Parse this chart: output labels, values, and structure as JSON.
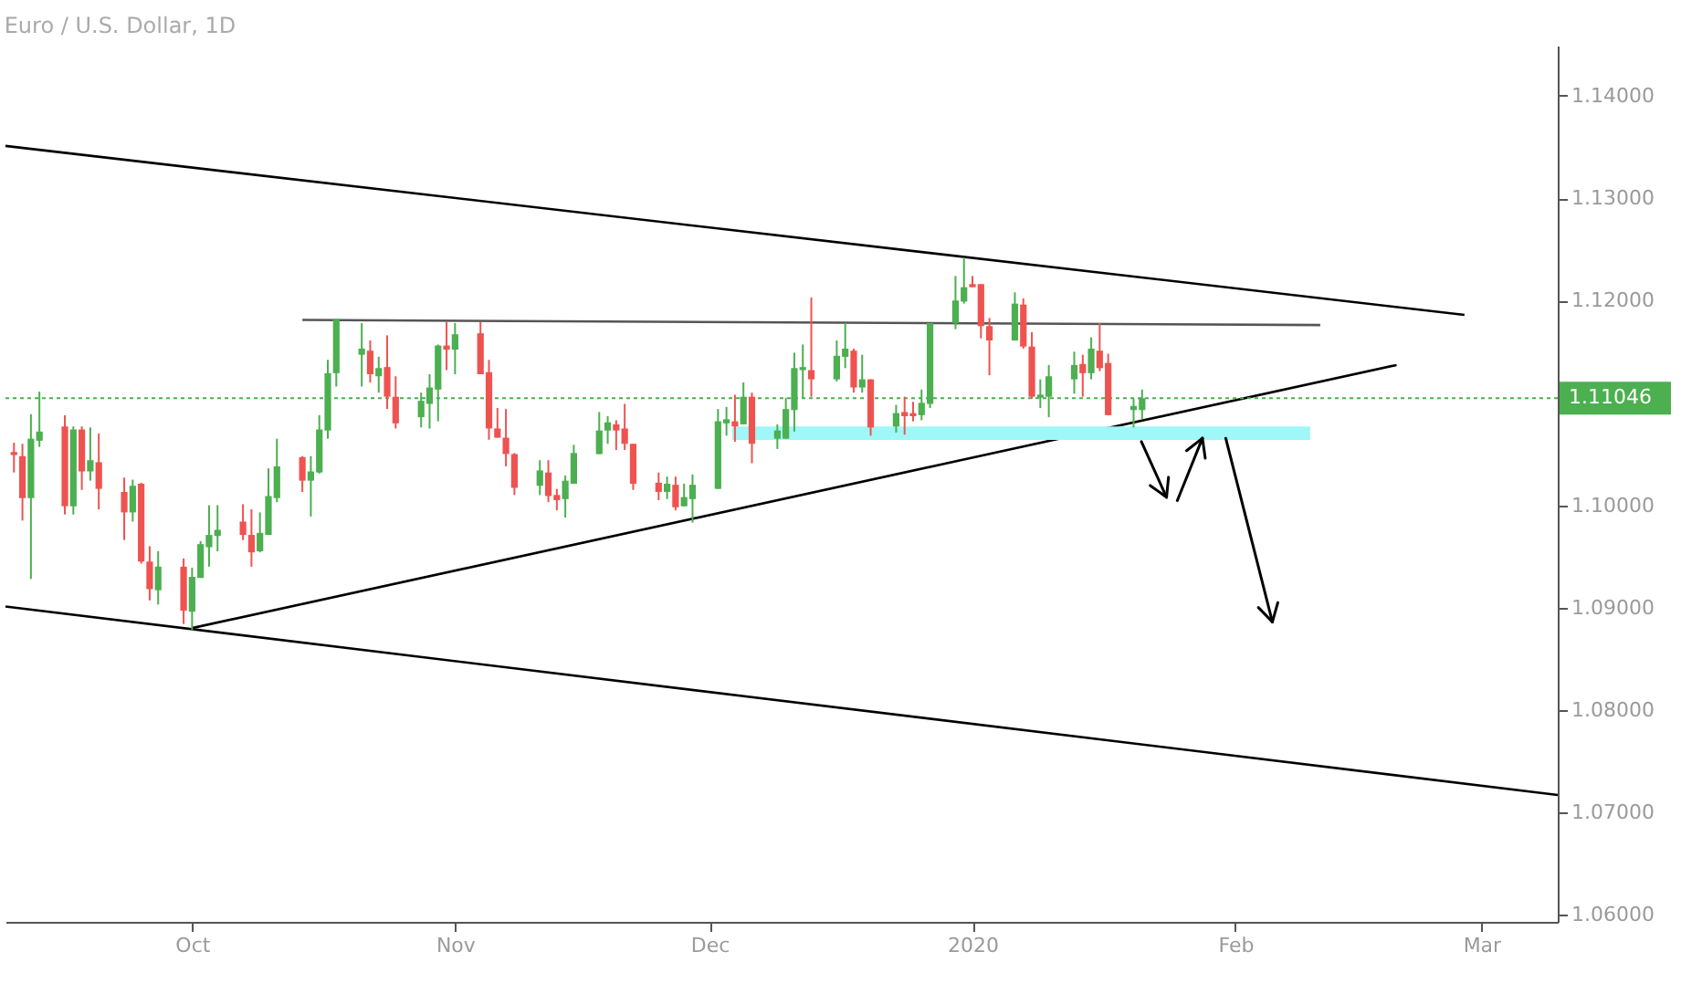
{
  "chart_data": {
    "type": "candlestick",
    "title": "Euro / U.S. Dollar, 1D",
    "x": [
      "2019-09-10",
      "2019-09-11",
      "2019-09-12",
      "2019-09-13",
      "2019-09-16",
      "2019-09-17",
      "2019-09-18",
      "2019-09-19",
      "2019-09-20",
      "2019-09-23",
      "2019-09-24",
      "2019-09-25",
      "2019-09-26",
      "2019-09-27",
      "2019-09-30",
      "2019-10-01",
      "2019-10-02",
      "2019-10-03",
      "2019-10-04",
      "2019-10-07",
      "2019-10-08",
      "2019-10-09",
      "2019-10-10",
      "2019-10-11",
      "2019-10-14",
      "2019-10-15",
      "2019-10-16",
      "2019-10-17",
      "2019-10-18",
      "2019-10-21",
      "2019-10-22",
      "2019-10-23",
      "2019-10-24",
      "2019-10-25",
      "2019-10-28",
      "2019-10-29",
      "2019-10-30",
      "2019-10-31",
      "2019-11-01",
      "2019-11-04",
      "2019-11-05",
      "2019-11-06",
      "2019-11-07",
      "2019-11-08",
      "2019-11-11",
      "2019-11-12",
      "2019-11-13",
      "2019-11-14",
      "2019-11-15",
      "2019-11-18",
      "2019-11-19",
      "2019-11-20",
      "2019-11-21",
      "2019-11-22",
      "2019-11-25",
      "2019-11-26",
      "2019-11-27",
      "2019-11-28",
      "2019-11-29",
      "2019-12-02",
      "2019-12-03",
      "2019-12-04",
      "2019-12-05",
      "2019-12-06",
      "2019-12-09",
      "2019-12-10",
      "2019-12-11",
      "2019-12-12",
      "2019-12-13",
      "2019-12-16",
      "2019-12-17",
      "2019-12-18",
      "2019-12-19",
      "2019-12-20",
      "2019-12-23",
      "2019-12-24",
      "2019-12-25",
      "2019-12-26",
      "2019-12-27",
      "2019-12-30",
      "2019-12-31",
      "2020-01-01",
      "2020-01-02",
      "2020-01-03",
      "2020-01-06",
      "2020-01-07",
      "2020-01-08",
      "2020-01-09",
      "2020-01-10",
      "2020-01-13",
      "2020-01-14",
      "2020-01-15",
      "2020-01-16",
      "2020-01-17",
      "2020-01-20",
      "2020-01-21"
    ],
    "ohlc": [
      [
        1.1052,
        1.1061,
        1.1032,
        1.1049
      ],
      [
        1.1048,
        1.106,
        1.0985,
        1.1007
      ],
      [
        1.1007,
        1.1089,
        1.0928,
        1.1065
      ],
      [
        1.1063,
        1.1111,
        1.1057,
        1.1072
      ],
      [
        1.1077,
        1.1088,
        1.0991,
        1.0999
      ],
      [
        1.0999,
        1.1077,
        1.0991,
        1.1074
      ],
      [
        1.1074,
        1.1077,
        1.1015,
        1.1033
      ],
      [
        1.1033,
        1.1076,
        1.1024,
        1.1044
      ],
      [
        1.1042,
        1.107,
        1.0996,
        1.1016
      ],
      [
        1.1013,
        1.1027,
        1.0966,
        1.0993
      ],
      [
        1.0993,
        1.1025,
        1.0984,
        1.1019
      ],
      [
        1.1021,
        1.1022,
        1.0943,
        1.0945
      ],
      [
        1.0945,
        1.096,
        1.0907,
        1.0918
      ],
      [
        1.0917,
        1.0955,
        1.0903,
        1.094
      ],
      [
        1.094,
        1.0948,
        1.0884,
        1.0897
      ],
      [
        1.0896,
        1.0939,
        1.0878,
        1.093
      ],
      [
        1.0929,
        1.0965,
        1.0929,
        1.0962
      ],
      [
        1.0959,
        1.1,
        1.094,
        1.0971
      ],
      [
        1.097,
        1.1,
        1.0955,
        1.0976
      ],
      [
        1.0984,
        1.1001,
        1.0966,
        1.0971
      ],
      [
        1.0971,
        1.0996,
        1.094,
        1.0954
      ],
      [
        1.0955,
        1.0993,
        1.0954,
        1.0973
      ],
      [
        1.0971,
        1.1036,
        1.0971,
        1.1009
      ],
      [
        1.1007,
        1.1065,
        1.1003,
        1.1038
      ],
      [
        1.1047,
        1.1048,
        1.1013,
        1.1024
      ],
      [
        1.1024,
        1.1048,
        1.0989,
        1.1033
      ],
      [
        1.1032,
        1.1088,
        1.1031,
        1.1074
      ],
      [
        1.1073,
        1.1142,
        1.1065,
        1.1129
      ],
      [
        1.1129,
        1.1182,
        1.1116,
        1.1182
      ],
      [
        1.1147,
        1.1178,
        1.1116,
        1.1153
      ],
      [
        1.1151,
        1.1161,
        1.112,
        1.1128
      ],
      [
        1.1126,
        1.1145,
        1.111,
        1.1134
      ],
      [
        1.1135,
        1.1166,
        1.1094,
        1.1106
      ],
      [
        1.1106,
        1.1126,
        1.1075,
        1.108
      ],
      [
        1.1086,
        1.111,
        1.1076,
        1.1102
      ],
      [
        1.1099,
        1.1128,
        1.1075,
        1.1115
      ],
      [
        1.1113,
        1.1157,
        1.1082,
        1.1156
      ],
      [
        1.1156,
        1.1179,
        1.1132,
        1.1152
      ],
      [
        1.1152,
        1.1178,
        1.1128,
        1.1167
      ],
      [
        1.1168,
        1.1179,
        1.1128,
        1.1128
      ],
      [
        1.113,
        1.1142,
        1.1064,
        1.1075
      ],
      [
        1.1075,
        1.1095,
        1.1066,
        1.1066
      ],
      [
        1.1066,
        1.1094,
        1.1038,
        1.105
      ],
      [
        1.105,
        1.1051,
        1.101,
        1.1017
      ],
      [
        1.1019,
        1.1044,
        1.101,
        1.1034
      ],
      [
        1.1032,
        1.1044,
        1.1003,
        1.1009
      ],
      [
        1.101,
        1.1016,
        1.0995,
        1.1005
      ],
      [
        1.1006,
        1.1029,
        1.0988,
        1.1024
      ],
      [
        1.1021,
        1.1059,
        1.1021,
        1.1051
      ],
      [
        1.105,
        1.1091,
        1.105,
        1.1073
      ],
      [
        1.1073,
        1.1087,
        1.106,
        1.1081
      ],
      [
        1.1079,
        1.1083,
        1.1054,
        1.1073
      ],
      [
        1.1075,
        1.1099,
        1.1054,
        1.106
      ],
      [
        1.106,
        1.106,
        1.1015,
        1.1021
      ],
      [
        1.1022,
        1.1032,
        1.1005,
        1.1013
      ],
      [
        1.1013,
        1.1028,
        1.1006,
        1.1021
      ],
      [
        1.102,
        1.1028,
        1.0995,
        1.0998
      ],
      [
        1.0999,
        1.1021,
        1.0999,
        1.1008
      ],
      [
        1.1006,
        1.103,
        1.0983,
        1.102
      ],
      [
        1.1016,
        1.1094,
        1.1016,
        1.1082
      ],
      [
        1.108,
        1.1096,
        1.1068,
        1.1084
      ],
      [
        1.1082,
        1.1108,
        1.1062,
        1.1077
      ],
      [
        1.1079,
        1.112,
        1.1079,
        1.1106
      ],
      [
        1.1106,
        1.111,
        1.1041,
        1.106
      ],
      [
        1.1065,
        1.1079,
        1.1055,
        1.1073
      ],
      [
        1.1065,
        1.1105,
        1.1065,
        1.1094
      ],
      [
        1.1093,
        1.1149,
        1.1072,
        1.1134
      ],
      [
        1.1132,
        1.1157,
        1.1105,
        1.1135
      ],
      [
        1.1132,
        1.1203,
        1.1106,
        1.1123
      ],
      [
        1.1123,
        1.1161,
        1.1121,
        1.1146
      ],
      [
        1.1145,
        1.1178,
        1.1134,
        1.1153
      ],
      [
        1.1151,
        1.1153,
        1.111,
        1.1115
      ],
      [
        1.1115,
        1.1147,
        1.111,
        1.1123
      ],
      [
        1.1123,
        1.1123,
        1.1068,
        1.1076
      ],
      [
        1.1077,
        1.1098,
        1.1071,
        1.109
      ],
      [
        1.1091,
        1.1106,
        1.1069,
        1.1087
      ],
      [
        1.109,
        1.1101,
        1.1082,
        1.1087
      ],
      [
        1.1088,
        1.1113,
        1.1083,
        1.11
      ],
      [
        1.1099,
        1.1178,
        1.1095,
        1.1178
      ],
      [
        1.1178,
        1.1224,
        1.1172,
        1.12
      ],
      [
        1.1199,
        1.1242,
        1.1197,
        1.1213
      ],
      [
        1.1216,
        1.1224,
        1.1213,
        1.1213
      ],
      [
        1.1216,
        1.1216,
        1.1163,
        1.1175
      ],
      [
        1.1175,
        1.1183,
        1.1127,
        1.1161
      ],
      [
        1.1161,
        1.1208,
        1.1161,
        1.1197
      ],
      [
        1.1196,
        1.1202,
        1.1153,
        1.1155
      ],
      [
        1.1155,
        1.1169,
        1.1104,
        1.1106
      ],
      [
        1.1105,
        1.1123,
        1.1095,
        1.1108
      ],
      [
        1.1106,
        1.1137,
        1.1086,
        1.1126
      ],
      [
        1.1123,
        1.115,
        1.1109,
        1.1137
      ],
      [
        1.1138,
        1.1147,
        1.1106,
        1.1129
      ],
      [
        1.1129,
        1.1164,
        1.1123,
        1.1153
      ],
      [
        1.1151,
        1.1178,
        1.1131,
        1.1134
      ],
      [
        1.1139,
        1.1148,
        1.1088,
        1.1088
      ],
      [
        1.1093,
        1.1104,
        1.1076,
        1.1097
      ],
      [
        1.1093,
        1.1113,
        1.1084,
        1.11046
      ]
    ],
    "colors": [
      "#ef5350",
      "#ef5350",
      "#4caf50",
      "#4caf50",
      "#ef5350",
      "#4caf50",
      "#ef5350",
      "#4caf50",
      "#ef5350",
      "#ef5350",
      "#4caf50",
      "#ef5350",
      "#ef5350",
      "#4caf50",
      "#ef5350",
      "#4caf50",
      "#4caf50",
      "#4caf50",
      "#4caf50",
      "#ef5350",
      "#ef5350",
      "#4caf50",
      "#4caf50",
      "#4caf50",
      "#ef5350",
      "#4caf50",
      "#4caf50",
      "#4caf50",
      "#4caf50",
      "#4caf50",
      "#ef5350",
      "#4caf50",
      "#ef5350",
      "#ef5350",
      "#4caf50",
      "#4caf50",
      "#4caf50",
      "#ef5350",
      "#4caf50",
      "#ef5350",
      "#ef5350",
      "#ef5350",
      "#ef5350",
      "#ef5350",
      "#4caf50",
      "#ef5350",
      "#ef5350",
      "#4caf50",
      "#4caf50",
      "#4caf50",
      "#4caf50",
      "#ef5350",
      "#ef5350",
      "#ef5350",
      "#ef5350",
      "#4caf50",
      "#ef5350",
      "#4caf50",
      "#4caf50",
      "#4caf50",
      "#4caf50",
      "#ef5350",
      "#4caf50",
      "#ef5350",
      "#4caf50",
      "#4caf50",
      "#4caf50",
      "#4caf50",
      "#ef5350",
      "#4caf50",
      "#4caf50",
      "#ef5350",
      "#4caf50",
      "#ef5350",
      "#4caf50",
      "#ef5350",
      "#ef5350",
      "#4caf50",
      "#4caf50",
      "#4caf50",
      "#4caf50",
      "#ef5350",
      "#ef5350",
      "#ef5350",
      "#4caf50",
      "#ef5350",
      "#ef5350",
      "#4caf50",
      "#4caf50",
      "#4caf50",
      "#ef5350",
      "#4caf50",
      "#ef5350",
      "#ef5350",
      "#4caf50",
      "#4caf50"
    ],
    "series": [
      {
        "type": "line",
        "color": "#000000",
        "x": [
          "2019-09-09",
          "2020-02-28"
        ],
        "values": [
          1.1351,
          1.1186
        ]
      },
      {
        "type": "line",
        "color": "#000000",
        "x": [
          "2019-09-09",
          "2020-03-10"
        ],
        "values": [
          1.0901,
          1.0717
        ]
      },
      {
        "type": "line",
        "color": "#000000",
        "x": [
          "2019-10-01",
          "2020-02-20"
        ],
        "values": [
          1.088,
          1.1137
        ]
      },
      {
        "type": "line",
        "color": "#555555",
        "x": [
          "2019-10-14",
          "2020-02-11"
        ],
        "values": [
          1.1181,
          1.1176
        ]
      }
    ],
    "xlim": [
      "2019-09-09",
      "2020-03-10"
    ],
    "xticks": [
      {
        "value": "2019-10-01",
        "label": "Oct"
      },
      {
        "value": "2019-11-01",
        "label": "Nov"
      },
      {
        "value": "2019-12-01",
        "label": "Dec"
      },
      {
        "value": "2020-01-01",
        "label": "2020"
      },
      {
        "value": "2020-02-01",
        "label": "Feb"
      },
      {
        "value": "2020-03-01",
        "label": "Mar"
      }
    ],
    "ylim": [
      1.0593,
      1.1449
    ],
    "yticks": [
      {
        "value": 1.06,
        "label": "1.06000"
      },
      {
        "value": 1.07,
        "label": "1.07000"
      },
      {
        "value": 1.08,
        "label": "1.08000"
      },
      {
        "value": 1.09,
        "label": "1.09000"
      },
      {
        "value": 1.1,
        "label": "1.10000"
      },
      {
        "value": 1.12,
        "label": "1.12000"
      },
      {
        "value": 1.13,
        "label": "1.13000"
      },
      {
        "value": 1.14,
        "label": "1.14000"
      }
    ],
    "ref_lines": [
      {
        "axis": "y",
        "value": 1.11046,
        "label": "1.11046",
        "color": "#4caf50",
        "line_style": "dotted"
      }
    ]
  }
}
